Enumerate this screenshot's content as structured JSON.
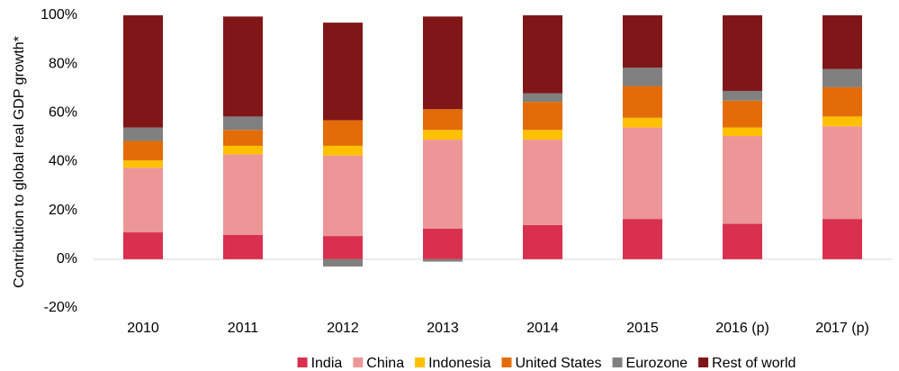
{
  "chart_data": {
    "type": "stacked_bar",
    "y_label": "Contribution to global real GDP growth*",
    "categories": [
      "2010",
      "2011",
      "2012",
      "2013",
      "2014",
      "2015",
      "2016 (p)",
      "2017 (p)"
    ],
    "series": [
      {
        "name": "India",
        "color": "#d9304f",
        "values": [
          11,
          10,
          9.5,
          12.5,
          14,
          16.5,
          14.5,
          16.5
        ]
      },
      {
        "name": "China",
        "color": "#ec9698",
        "values": [
          26.5,
          33,
          33,
          36.5,
          35,
          37.5,
          36,
          38
        ]
      },
      {
        "name": "Indonesia",
        "color": "#ffc000",
        "values": [
          3,
          3.5,
          4,
          4,
          4,
          4,
          3.5,
          4
        ]
      },
      {
        "name": "United States",
        "color": "#e36c09",
        "values": [
          8,
          6.5,
          10.5,
          8.5,
          11.5,
          13,
          11,
          12
        ]
      },
      {
        "name": "Eurozone",
        "color": "#808080",
        "values": [
          5.5,
          5.5,
          -3,
          -1,
          3.5,
          7.5,
          4,
          7.5
        ]
      },
      {
        "name": "Rest of world",
        "color": "#7f1719",
        "values": [
          46,
          41,
          40,
          38,
          32,
          21.5,
          31,
          22
        ]
      }
    ],
    "ylim": [
      -20,
      100
    ],
    "yticks": [
      {
        "value": -20,
        "label": "-20%"
      },
      {
        "value": 0,
        "label": "0%"
      },
      {
        "value": 20,
        "label": "20%"
      },
      {
        "value": 40,
        "label": "40%"
      },
      {
        "value": 60,
        "label": "60%"
      },
      {
        "value": 80,
        "label": "80%"
      },
      {
        "value": 100,
        "label": "100%"
      }
    ],
    "legend": "bottom"
  }
}
